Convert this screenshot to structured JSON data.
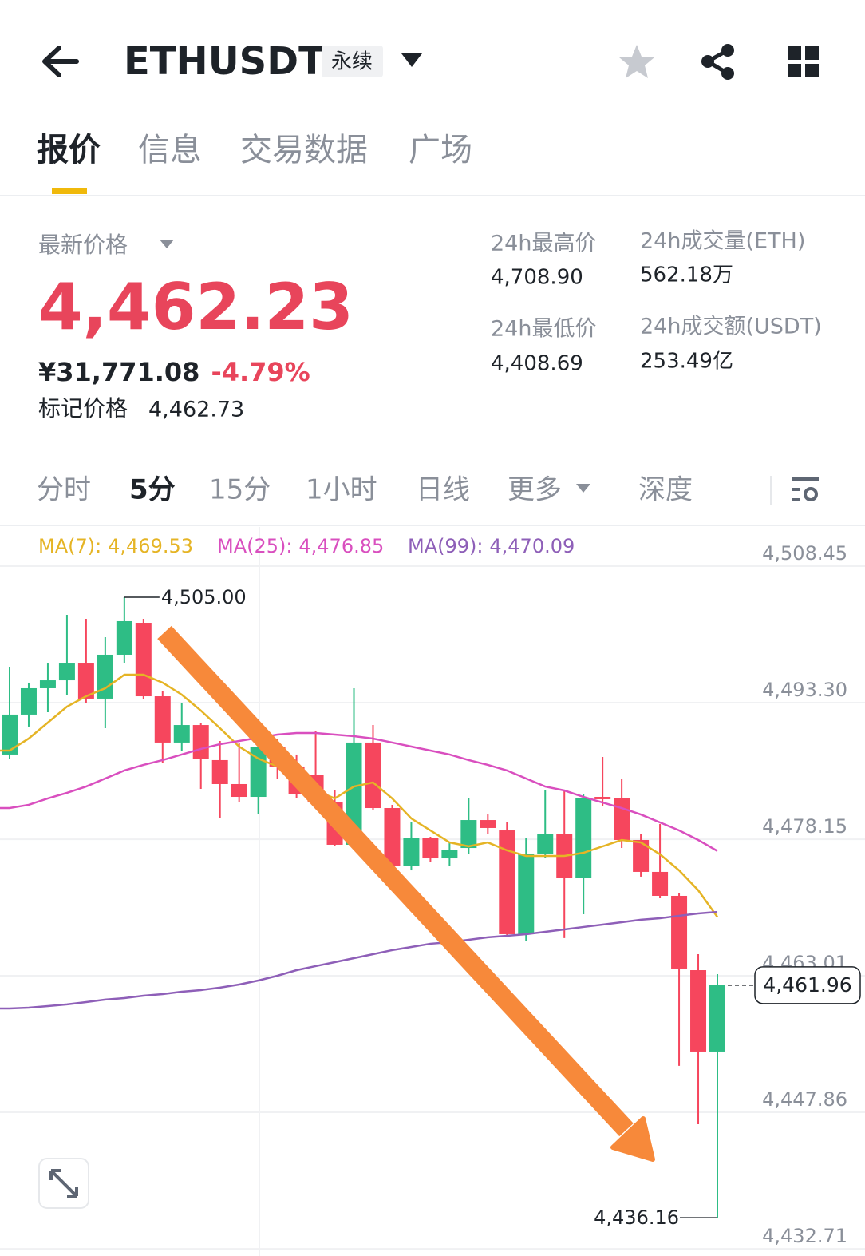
{
  "header": {
    "symbol": "ETHUSDT",
    "badge": "永续"
  },
  "tabs": {
    "items": [
      "报价",
      "信息",
      "交易数据",
      "广场"
    ],
    "active": 0
  },
  "price": {
    "label": "最新价格",
    "last": "4,462.23",
    "cny": "¥31,771.08",
    "change": "-4.79%",
    "mark_label": "标记价格",
    "mark": "4,462.73"
  },
  "stats": [
    {
      "label": "24h最高价",
      "value": "4,708.90"
    },
    {
      "label": "24h成交量(ETH)",
      "value": "562.18万"
    },
    {
      "label": "24h最低价",
      "value": "4,408.69"
    },
    {
      "label": "24h成交额(USDT)",
      "value": "253.49亿"
    }
  ],
  "intervals": {
    "items": [
      "分时",
      "5分",
      "15分",
      "1小时",
      "日线",
      "更多",
      "深度"
    ],
    "active": 1
  },
  "chart_data": {
    "type": "candlestick",
    "up_color": "#2ebd85",
    "down_color": "#f6465d",
    "ylim": [
      4432.63,
      4512.79
    ],
    "yticks": [
      {
        "value": 4508.45,
        "label": "4,508.45"
      },
      {
        "value": 4493.3,
        "label": "4,493.30"
      },
      {
        "value": 4478.15,
        "label": "4,478.15"
      },
      {
        "value": 4463.01,
        "label": "4,463.01"
      },
      {
        "value": 4447.86,
        "label": "4,447.86"
      },
      {
        "value": 4432.71,
        "label": "4,432.71"
      }
    ],
    "grid": true,
    "open": [
      4487.55,
      4491.98,
      4494.9,
      4495.78,
      4497.73,
      4493.75,
      4498.62,
      4502.16,
      4494.01,
      4488.88,
      4490.82,
      4486.93,
      4484.27,
      4482.85,
      4488.43,
      4486.22,
      4485.33,
      4482.23,
      4477.54,
      4488.88,
      4481.61,
      4475.15,
      4478.25,
      4476.03,
      4477.18,
      4480.28,
      4479.13,
      4467.62,
      4476.48,
      4478.69,
      4473.82,
      4482.85,
      4482.68,
      4478.07,
      4474.53,
      4471.87,
      4463.63,
      4454.6
    ],
    "high": [
      4497.29,
      4495.52,
      4497.73,
      4503.05,
      4502.6,
      4500.57,
      4505.0,
      4502.6,
      4494.63,
      4493.3,
      4491.09,
      4489.05,
      4488.88,
      4489.76,
      4489.32,
      4487.55,
      4490.2,
      4483.56,
      4494.9,
      4490.82,
      4481.97,
      4480.02,
      4478.42,
      4477.8,
      4482.68,
      4480.9,
      4480.02,
      4478.25,
      4483.56,
      4483.56,
      4483.12,
      4487.28,
      4484.89,
      4478.69,
      4479.84,
      4472.22,
      4465.4,
      4463.19
    ],
    "low": [
      4487.1,
      4490.65,
      4492.24,
      4494.19,
      4493.3,
      4490.47,
      4497.73,
      4493.75,
      4486.66,
      4487.99,
      4483.74,
      4480.46,
      4482.23,
      4480.9,
      4484.89,
      4482.68,
      4481.79,
      4477.36,
      4477.36,
      4481.35,
      4474.7,
      4474.7,
      4475.59,
      4475.15,
      4476.48,
      4478.69,
      4467.44,
      4466.91,
      4476.03,
      4467.18,
      4469.83,
      4481.79,
      4477.18,
      4474.0,
      4471.6,
      4453.01,
      4446.54,
      4436.16
    ],
    "close": [
      4491.98,
      4494.9,
      4495.78,
      4497.73,
      4493.75,
      4498.62,
      4502.34,
      4494.01,
      4488.88,
      4490.82,
      4487.1,
      4484.27,
      4482.85,
      4488.43,
      4486.22,
      4483.12,
      4482.23,
      4477.54,
      4488.88,
      4481.61,
      4475.15,
      4478.25,
      4476.03,
      4476.92,
      4480.28,
      4479.4,
      4467.62,
      4476.48,
      4478.69,
      4473.82,
      4482.68,
      4482.59,
      4478.07,
      4474.53,
      4471.87,
      4463.81,
      4454.6,
      4461.96
    ],
    "series": [
      {
        "name": "MA(7)",
        "color": "#e5b425",
        "last_label": "4,469.53",
        "values": [
          4487.99,
          4489.32,
          4491.09,
          4492.86,
          4494.01,
          4494.9,
          4496.4,
          4496.4,
          4495.52,
          4494.19,
          4492.42,
          4490.47,
          4488.43,
          4487.1,
          4486.22,
          4484.89,
          4483.56,
          4482.68,
          4484.0,
          4484.45,
          4482.68,
          4480.46,
          4479.13,
          4477.8,
          4477.36,
          4477.8,
          4476.92,
          4476.3,
          4476.3,
          4476.3,
          4476.65,
          4477.36,
          4478.07,
          4477.8,
          4476.48,
          4474.7,
          4472.49,
          4469.53
        ]
      },
      {
        "name": "MA(25)",
        "color": "#d94fbf",
        "last_label": "4,476.85",
        "values": [
          4481.61,
          4481.97,
          4482.68,
          4483.3,
          4484.0,
          4484.89,
          4485.78,
          4486.4,
          4486.93,
          4487.55,
          4488.17,
          4488.7,
          4489.05,
          4489.41,
          4489.76,
          4489.94,
          4489.94,
          4489.76,
          4489.58,
          4489.32,
          4488.88,
          4488.43,
          4487.99,
          4487.55,
          4486.93,
          4486.4,
          4485.78,
          4484.89,
          4484.0,
          4483.56,
          4482.85,
          4482.23,
          4481.61,
          4480.9,
          4480.02,
          4479.13,
          4478.07,
          4476.85
        ]
      },
      {
        "name": "MA(99)",
        "color": "#8e5fb8",
        "last_label": "4,470.09",
        "values": [
          4459.38,
          4459.47,
          4459.65,
          4459.83,
          4460.09,
          4460.36,
          4460.53,
          4460.8,
          4460.97,
          4461.24,
          4461.42,
          4461.69,
          4462.04,
          4462.48,
          4463.01,
          4463.63,
          4464.08,
          4464.52,
          4464.96,
          4465.4,
          4465.85,
          4466.2,
          4466.56,
          4466.73,
          4467.0,
          4467.27,
          4467.44,
          4467.62,
          4467.88,
          4468.15,
          4468.42,
          4468.68,
          4468.95,
          4469.22,
          4469.39,
          4469.66,
          4469.92,
          4470.09
        ]
      }
    ],
    "annotations": {
      "high": {
        "value": 4505.0,
        "label": "4,505.00"
      },
      "low": {
        "value": 4436.16,
        "label": "4,436.16"
      },
      "current": {
        "value": 4461.96,
        "label": "4,461.96"
      }
    }
  }
}
